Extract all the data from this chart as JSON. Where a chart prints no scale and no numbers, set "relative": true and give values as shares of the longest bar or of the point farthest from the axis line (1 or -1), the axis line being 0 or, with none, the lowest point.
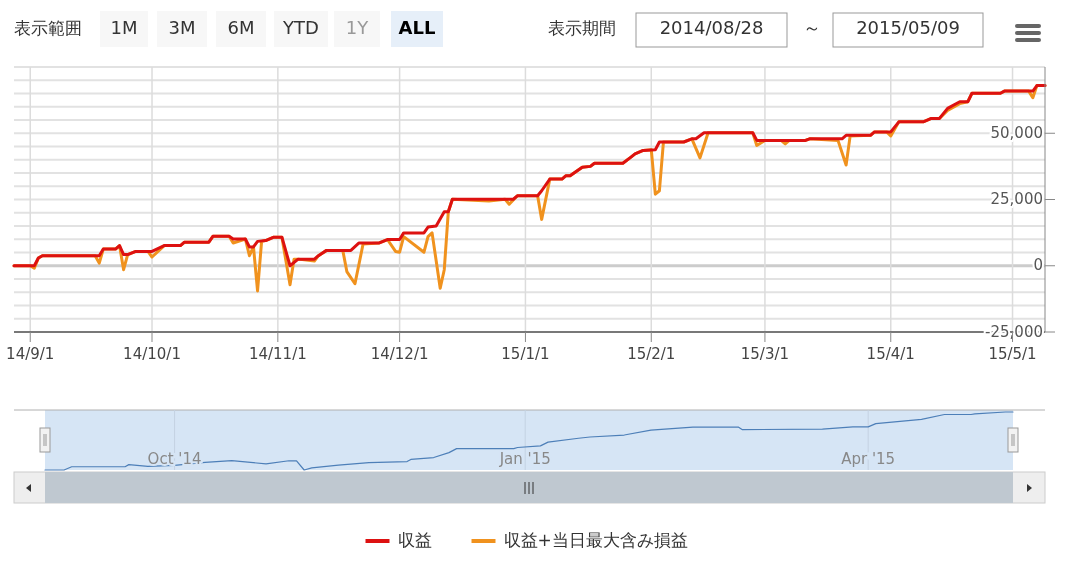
{
  "chart_data": [
    {
      "type": "line",
      "xlim": [
        "2014-08-28",
        "2015-05-09"
      ],
      "ylim": [
        -25000,
        75000
      ],
      "xticks": [
        {
          "value": "2014-09-01",
          "label": "14/9/1"
        },
        {
          "value": "2014-10-01",
          "label": "14/10/1"
        },
        {
          "value": "2014-11-01",
          "label": "14/11/1"
        },
        {
          "value": "2014-12-01",
          "label": "14/12/1"
        },
        {
          "value": "2015-01-01",
          "label": "15/1/1"
        },
        {
          "value": "2015-02-01",
          "label": "15/2/1"
        },
        {
          "value": "2015-03-01",
          "label": "15/3/1"
        },
        {
          "value": "2015-04-01",
          "label": "15/4/1"
        },
        {
          "value": "2015-05-01",
          "label": "15/5/1"
        }
      ],
      "yticks": [
        {
          "value": -25000,
          "label": "-25,000"
        },
        {
          "value": -20000,
          "label": null
        },
        {
          "value": -15000,
          "label": null
        },
        {
          "value": -10000,
          "label": null
        },
        {
          "value": -5000,
          "label": null
        },
        0,
        {
          "value": 5000,
          "label": null
        },
        {
          "value": 10000,
          "label": null
        },
        {
          "value": 15000,
          "label": null
        },
        {
          "value": 20000,
          "label": null
        },
        {
          "value": 25000,
          "label": "25,000"
        },
        {
          "value": 30000,
          "label": null
        },
        {
          "value": 35000,
          "label": null
        },
        {
          "value": 40000,
          "label": null
        },
        {
          "value": 45000,
          "label": null
        },
        {
          "value": 50000,
          "label": "50,000"
        },
        {
          "value": 55000,
          "label": null
        },
        {
          "value": 60000,
          "label": null
        },
        {
          "value": 65000,
          "label": null
        },
        {
          "value": 70000,
          "label": null
        },
        {
          "value": 75000,
          "label": null
        }
      ],
      "grid": true,
      "legend": "bottom",
      "line_style": "solid",
      "annotations": [
        "表示範囲",
        "1M",
        "3M",
        "6M",
        "YTD",
        "1Y",
        "ALL",
        "表示期間",
        "2014/08/28",
        "～",
        "2015/05/09"
      ],
      "series": [
        {
          "name": "収益",
          "color": "#dd1111",
          "x": [
            "2014-08-28",
            "2014-09-02",
            "2014-09-03",
            "2014-09-04",
            "2014-09-18",
            "2014-09-19",
            "2014-09-22",
            "2014-09-23",
            "2014-09-24",
            "2014-09-25",
            "2014-09-27",
            "2014-10-01",
            "2014-10-04",
            "2014-10-08",
            "2014-10-09",
            "2014-10-15",
            "2014-10-16",
            "2014-10-20",
            "2014-10-21",
            "2014-10-24",
            "2014-10-25",
            "2014-10-26",
            "2014-10-27",
            "2014-10-29",
            "2014-10-31",
            "2014-11-02",
            "2014-11-04",
            "2014-11-06",
            "2014-11-10",
            "2014-11-11",
            "2014-11-13",
            "2014-11-19",
            "2014-11-21",
            "2014-11-26",
            "2014-11-28",
            "2014-12-01",
            "2014-12-02",
            "2014-12-07",
            "2014-12-08",
            "2014-12-10",
            "2014-12-12",
            "2014-12-13",
            "2014-12-14",
            "2014-12-29",
            "2014-12-30",
            "2015-01-04",
            "2015-01-05",
            "2015-01-07",
            "2015-01-10",
            "2015-01-11",
            "2015-01-12",
            "2015-01-15",
            "2015-01-17",
            "2015-01-18",
            "2015-01-25",
            "2015-01-27",
            "2015-01-28",
            "2015-01-30",
            "2015-02-02",
            "2015-02-03",
            "2015-02-09",
            "2015-02-11",
            "2015-02-12",
            "2015-02-14",
            "2015-02-26",
            "2015-02-27",
            "2015-03-11",
            "2015-03-12",
            "2015-03-20",
            "2015-03-21",
            "2015-03-27",
            "2015-03-28",
            "2015-04-01",
            "2015-04-03",
            "2015-04-09",
            "2015-04-11",
            "2015-04-13",
            "2015-04-15",
            "2015-04-18",
            "2015-04-20",
            "2015-04-21",
            "2015-04-28",
            "2015-04-29",
            "2015-05-06",
            "2015-05-07",
            "2015-05-09"
          ],
          "values": [
            0,
            0,
            2900,
            3800,
            3800,
            6300,
            6300,
            7600,
            4200,
            4200,
            5400,
            5400,
            7600,
            7600,
            8900,
            8900,
            11100,
            11100,
            10100,
            10100,
            7100,
            7100,
            9200,
            9500,
            10800,
            10800,
            0,
            2500,
            2500,
            3800,
            5800,
            5800,
            8600,
            8600,
            9900,
            9900,
            12400,
            12400,
            14600,
            15000,
            20400,
            20400,
            25100,
            25100,
            26400,
            26400,
            28300,
            32700,
            32700,
            34000,
            34000,
            37200,
            37500,
            38700,
            38700,
            41000,
            42200,
            43500,
            43800,
            46700,
            46700,
            47900,
            47900,
            50200,
            50200,
            47300,
            47300,
            47900,
            47900,
            49200,
            49200,
            50500,
            50500,
            54300,
            54300,
            55600,
            55600,
            59400,
            61900,
            61900,
            65100,
            65100,
            65900,
            65900,
            68000,
            68000
          ]
        },
        {
          "name": "収益+当日最大含み損益",
          "color": "#f0921e",
          "x": [
            "2014-08-28",
            "2014-09-01",
            "2014-09-02",
            "2014-09-03",
            "2014-09-04",
            "2014-09-17",
            "2014-09-18",
            "2014-09-19",
            "2014-09-22",
            "2014-09-23",
            "2014-09-24",
            "2014-09-25",
            "2014-09-27",
            "2014-09-30",
            "2014-10-01",
            "2014-10-04",
            "2014-10-08",
            "2014-10-09",
            "2014-10-15",
            "2014-10-16",
            "2014-10-20",
            "2014-10-21",
            "2014-10-24",
            "2014-10-25",
            "2014-10-26",
            "2014-10-27",
            "2014-10-28",
            "2014-10-29",
            "2014-10-31",
            "2014-11-02",
            "2014-11-04",
            "2014-11-05",
            "2014-11-06",
            "2014-11-10",
            "2014-11-11",
            "2014-11-13",
            "2014-11-17",
            "2014-11-18",
            "2014-11-20",
            "2014-11-22",
            "2014-11-26",
            "2014-11-28",
            "2014-11-30",
            "2014-12-01",
            "2014-12-02",
            "2014-12-07",
            "2014-12-08",
            "2014-12-09",
            "2014-12-11",
            "2014-12-12",
            "2014-12-13",
            "2014-12-14",
            "2014-12-23",
            "2014-12-27",
            "2014-12-28",
            "2014-12-30",
            "2015-01-04",
            "2015-01-05",
            "2015-01-07",
            "2015-01-10",
            "2015-01-11",
            "2015-01-12",
            "2015-01-15",
            "2015-01-17",
            "2015-01-18",
            "2015-01-25",
            "2015-01-27",
            "2015-01-28",
            "2015-01-30",
            "2015-02-01",
            "2015-02-02",
            "2015-02-03",
            "2015-02-04",
            "2015-02-09",
            "2015-02-11",
            "2015-02-13",
            "2015-02-15",
            "2015-02-26",
            "2015-02-27",
            "2015-03-01",
            "2015-03-05",
            "2015-03-06",
            "2015-03-07",
            "2015-03-11",
            "2015-03-12",
            "2015-03-19",
            "2015-03-21",
            "2015-03-22",
            "2015-03-27",
            "2015-03-28",
            "2015-03-31",
            "2015-04-01",
            "2015-04-03",
            "2015-04-09",
            "2015-04-11",
            "2015-04-13",
            "2015-04-15",
            "2015-04-18",
            "2015-04-20",
            "2015-04-21",
            "2015-04-28",
            "2015-04-29",
            "2015-05-05",
            "2015-05-06",
            "2015-05-07",
            "2015-05-09"
          ],
          "values": [
            0,
            0,
            -900,
            2900,
            3800,
            3800,
            1000,
            6300,
            6300,
            7600,
            -1500,
            4200,
            5400,
            5400,
            3300,
            7600,
            7600,
            8900,
            8900,
            11100,
            11100,
            8600,
            10100,
            3800,
            7100,
            -9500,
            9200,
            9500,
            10800,
            10800,
            -7200,
            2500,
            2500,
            1800,
            3800,
            5800,
            5800,
            -2200,
            -6800,
            8200,
            8600,
            9900,
            5400,
            5100,
            11000,
            5100,
            11000,
            12400,
            -8500,
            -1500,
            20400,
            25100,
            24400,
            25100,
            23200,
            26400,
            26400,
            17500,
            32700,
            32700,
            34000,
            34000,
            37200,
            37500,
            38700,
            38700,
            41000,
            42200,
            43500,
            43800,
            27000,
            28300,
            46700,
            46700,
            47900,
            40700,
            50200,
            50200,
            45400,
            47300,
            47300,
            46000,
            47300,
            47300,
            47900,
            47300,
            38000,
            49000,
            49200,
            50500,
            50500,
            49000,
            54300,
            54300,
            55600,
            55600,
            58600,
            61200,
            61900,
            65100,
            65100,
            65900,
            65900,
            63400,
            68000,
            68000
          ]
        }
      ]
    },
    {
      "type": "line",
      "relative": true,
      "grid": "x",
      "xlim": [
        "2014-08-28",
        "2015-05-09"
      ],
      "xticks": [
        {
          "value": "2014-10-01",
          "label": "Oct '14"
        },
        {
          "value": "2015-01-01",
          "label": "Jan '15"
        },
        {
          "value": "2015-04-01",
          "label": "Apr '15"
        }
      ],
      "series": [
        {
          "color": "#4d7fb8",
          "x": [
            "2014-08-28",
            "2014-09-02",
            "2014-09-04",
            "2014-09-18",
            "2014-09-19",
            "2014-09-24",
            "2014-10-01",
            "2014-10-09",
            "2014-10-16",
            "2014-10-25",
            "2014-10-31",
            "2014-11-02",
            "2014-11-04",
            "2014-11-06",
            "2014-11-13",
            "2014-11-21",
            "2014-12-01",
            "2014-12-02",
            "2014-12-08",
            "2014-12-12",
            "2014-12-14",
            "2014-12-29",
            "2014-12-30",
            "2015-01-05",
            "2015-01-07",
            "2015-01-15",
            "2015-01-18",
            "2015-01-27",
            "2015-02-03",
            "2015-02-14",
            "2015-02-26",
            "2015-02-27",
            "2015-03-20",
            "2015-03-28",
            "2015-04-01",
            "2015-04-03",
            "2015-04-15",
            "2015-04-21",
            "2015-04-28",
            "2015-04-29",
            "2015-05-07",
            "2015-05-09"
          ],
          "values": [
            0,
            0,
            0.056,
            0.056,
            0.093,
            0.062,
            0.079,
            0.131,
            0.163,
            0.104,
            0.159,
            0.159,
            0,
            0.037,
            0.085,
            0.126,
            0.146,
            0.182,
            0.215,
            0.3,
            0.369,
            0.369,
            0.388,
            0.416,
            0.481,
            0.547,
            0.569,
            0.603,
            0.687,
            0.738,
            0.738,
            0.696,
            0.704,
            0.743,
            0.743,
            0.799,
            0.874,
            0.957,
            0.957,
            0.969,
            1,
            1
          ]
        }
      ]
    }
  ]
}
